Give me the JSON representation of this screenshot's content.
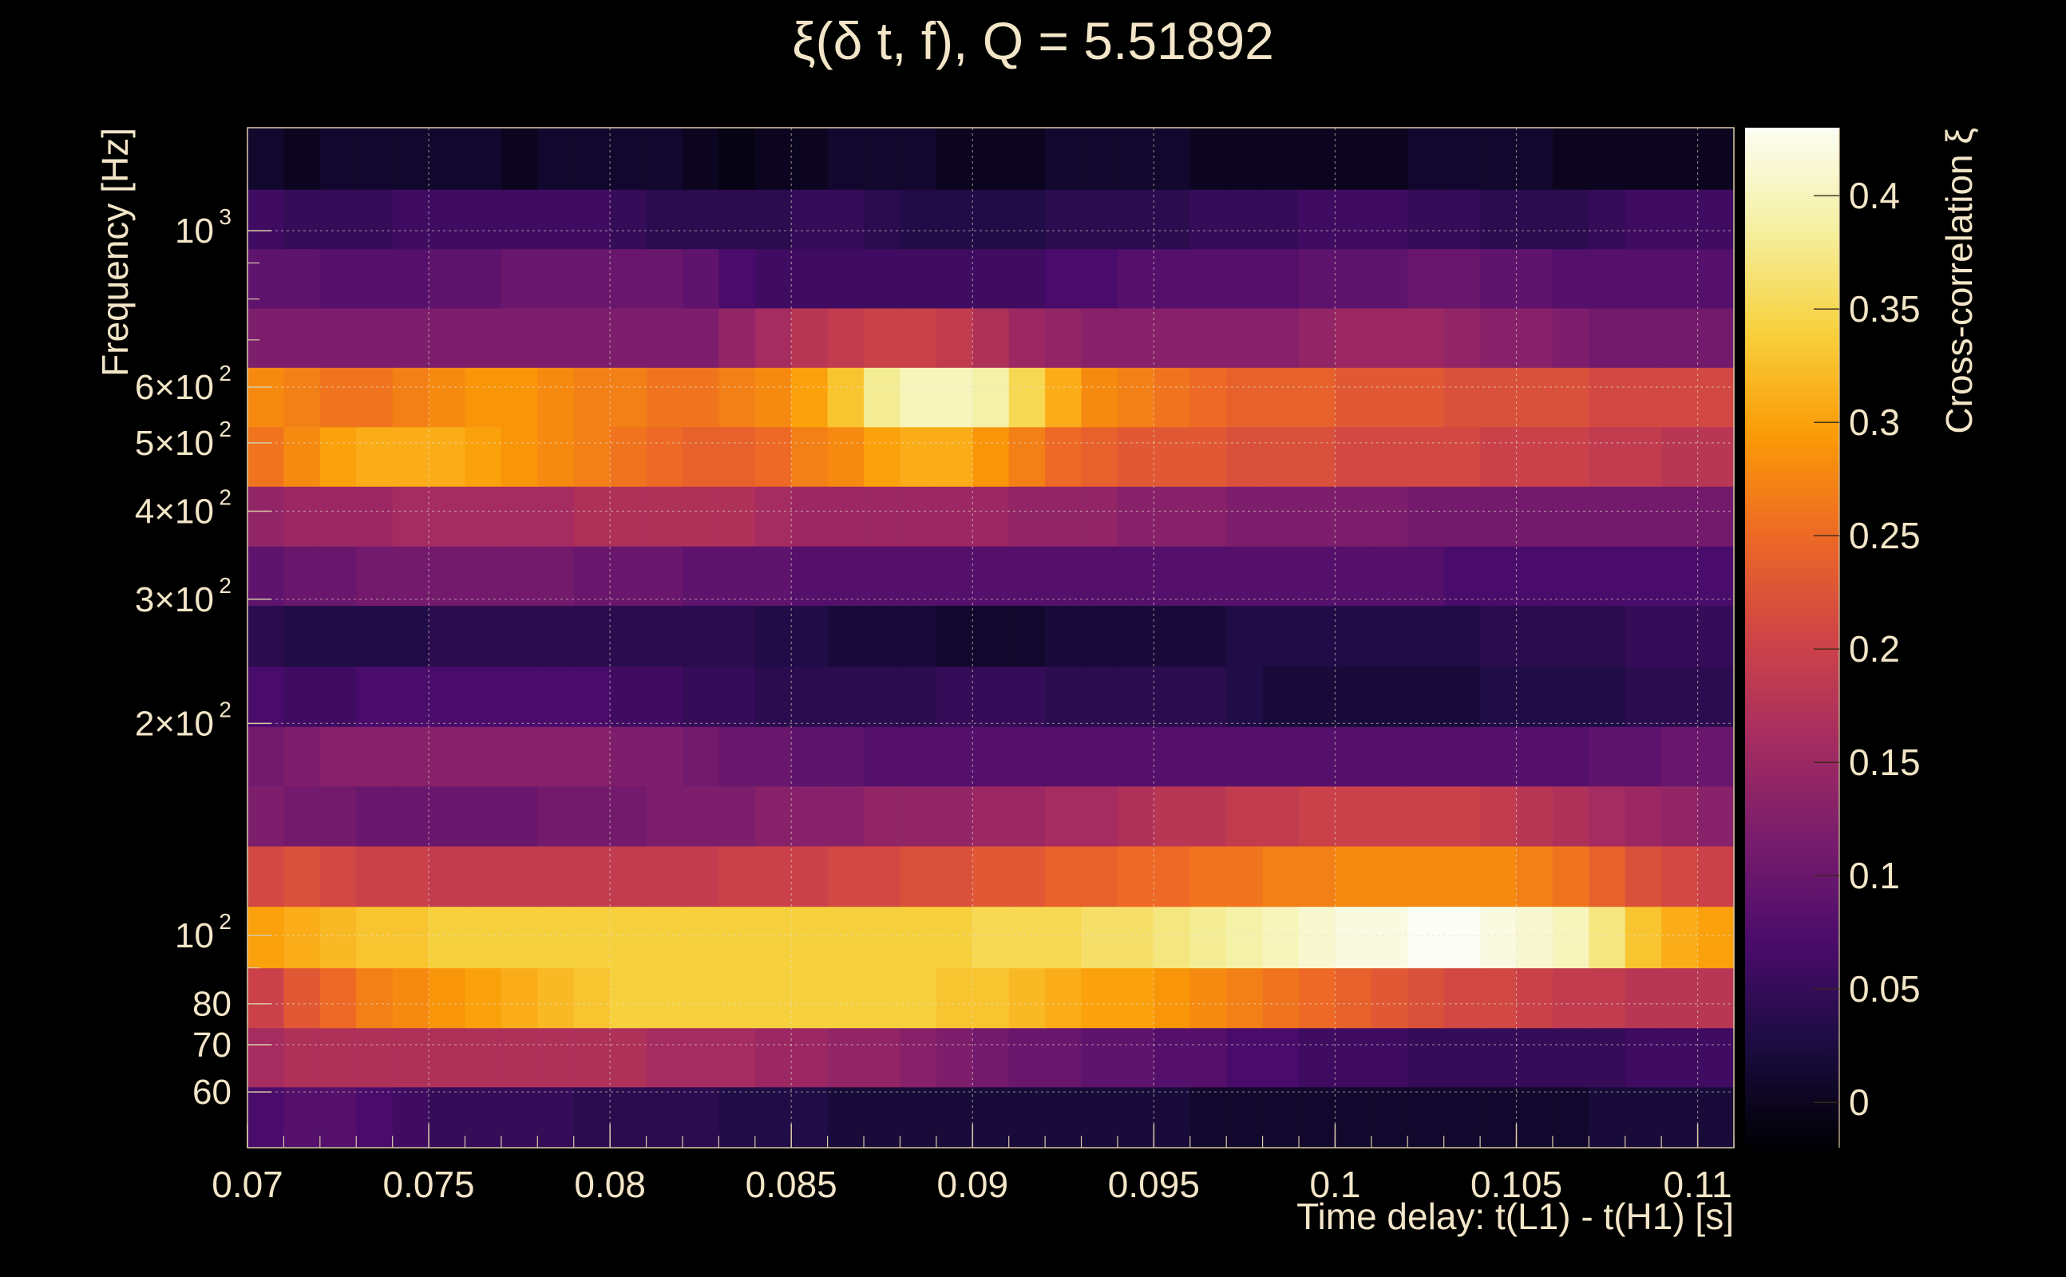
{
  "chart_data": {
    "type": "heatmap",
    "title": "ξ(δ t, f), Q = 5.51892",
    "xlabel": "Time delay: t(L1) - t(H1) [s]",
    "ylabel": "Frequency [Hz]",
    "colorbar_label": "Cross-correlation ξ",
    "x_ticks": [
      {
        "value": 0.07,
        "label": "0.07"
      },
      {
        "value": 0.075,
        "label": "0.075"
      },
      {
        "value": 0.08,
        "label": "0.08"
      },
      {
        "value": 0.085,
        "label": "0.085"
      },
      {
        "value": 0.09,
        "label": "0.09"
      },
      {
        "value": 0.095,
        "label": "0.095"
      },
      {
        "value": 0.1,
        "label": "0.1"
      },
      {
        "value": 0.105,
        "label": "0.105"
      },
      {
        "value": 0.11,
        "label": "0.11"
      }
    ],
    "y_ticks": [
      {
        "value": 60,
        "base": "60",
        "exp": ""
      },
      {
        "value": 70,
        "base": "70",
        "exp": ""
      },
      {
        "value": 80,
        "base": "80",
        "exp": ""
      },
      {
        "value": 100,
        "base": "10",
        "exp": "2"
      },
      {
        "value": 200,
        "base": "2×10",
        "exp": "2"
      },
      {
        "value": 300,
        "base": "3×10",
        "exp": "2"
      },
      {
        "value": 400,
        "base": "4×10",
        "exp": "2"
      },
      {
        "value": 500,
        "base": "5×10",
        "exp": "2"
      },
      {
        "value": 600,
        "base": "6×10",
        "exp": "2"
      },
      {
        "value": 1000,
        "base": "10",
        "exp": "3"
      }
    ],
    "color_ticks": [
      {
        "value": 0,
        "label": "0"
      },
      {
        "value": 0.05,
        "label": "0.05"
      },
      {
        "value": 0.1,
        "label": "0.1"
      },
      {
        "value": 0.15,
        "label": "0.15"
      },
      {
        "value": 0.2,
        "label": "0.2"
      },
      {
        "value": 0.25,
        "label": "0.25"
      },
      {
        "value": 0.3,
        "label": "0.3"
      },
      {
        "value": 0.35,
        "label": "0.35"
      },
      {
        "value": 0.4,
        "label": "0.4"
      }
    ],
    "xlim": [
      0.07,
      0.111
    ],
    "ylim": [
      50,
      1400
    ],
    "y_scale": "log",
    "zlim": [
      -0.02,
      0.43
    ],
    "grid": true,
    "colormap": "inferno",
    "time_bins": 41,
    "freq_bands": [
      {
        "f_low": 50,
        "f_high": 61,
        "values": [
          0.07,
          0.08,
          0.08,
          0.07,
          0.06,
          0.05,
          0.05,
          0.05,
          0.05,
          0.04,
          0.04,
          0.04,
          0.04,
          0.03,
          0.03,
          0.03,
          0.02,
          0.02,
          0.02,
          0.02,
          0.02,
          0.02,
          0.02,
          0.02,
          0.02,
          0.02,
          0.01,
          0.01,
          0.01,
          0.01,
          0.01,
          0.01,
          0.01,
          0.01,
          0.01,
          0.01,
          0.01,
          0.02,
          0.02,
          0.02,
          0.02
        ]
      },
      {
        "f_low": 61,
        "f_high": 74,
        "values": [
          0.16,
          0.17,
          0.17,
          0.17,
          0.17,
          0.17,
          0.17,
          0.17,
          0.17,
          0.17,
          0.17,
          0.16,
          0.16,
          0.16,
          0.15,
          0.15,
          0.14,
          0.14,
          0.13,
          0.12,
          0.11,
          0.1,
          0.1,
          0.09,
          0.09,
          0.08,
          0.08,
          0.07,
          0.07,
          0.06,
          0.06,
          0.06,
          0.05,
          0.05,
          0.05,
          0.05,
          0.05,
          0.05,
          0.06,
          0.06,
          0.06
        ]
      },
      {
        "f_low": 74,
        "f_high": 90,
        "values": [
          0.2,
          0.23,
          0.25,
          0.27,
          0.28,
          0.29,
          0.3,
          0.31,
          0.32,
          0.33,
          0.34,
          0.34,
          0.34,
          0.34,
          0.34,
          0.34,
          0.34,
          0.34,
          0.34,
          0.33,
          0.33,
          0.32,
          0.31,
          0.3,
          0.3,
          0.29,
          0.28,
          0.27,
          0.26,
          0.25,
          0.24,
          0.23,
          0.22,
          0.21,
          0.21,
          0.2,
          0.19,
          0.19,
          0.18,
          0.18,
          0.18
        ]
      },
      {
        "f_low": 90,
        "f_high": 110,
        "values": [
          0.3,
          0.31,
          0.32,
          0.33,
          0.33,
          0.34,
          0.34,
          0.34,
          0.34,
          0.34,
          0.34,
          0.34,
          0.34,
          0.34,
          0.34,
          0.34,
          0.34,
          0.34,
          0.34,
          0.34,
          0.35,
          0.35,
          0.35,
          0.36,
          0.36,
          0.37,
          0.38,
          0.39,
          0.4,
          0.41,
          0.42,
          0.42,
          0.43,
          0.43,
          0.42,
          0.41,
          0.4,
          0.37,
          0.33,
          0.31,
          0.3
        ]
      },
      {
        "f_low": 110,
        "f_high": 134,
        "values": [
          0.21,
          0.22,
          0.21,
          0.2,
          0.2,
          0.19,
          0.19,
          0.19,
          0.19,
          0.19,
          0.19,
          0.19,
          0.19,
          0.2,
          0.2,
          0.2,
          0.21,
          0.21,
          0.22,
          0.22,
          0.23,
          0.23,
          0.24,
          0.24,
          0.25,
          0.25,
          0.26,
          0.26,
          0.27,
          0.27,
          0.28,
          0.28,
          0.28,
          0.28,
          0.28,
          0.27,
          0.26,
          0.24,
          0.22,
          0.21,
          0.2
        ]
      },
      {
        "f_low": 134,
        "f_high": 163,
        "values": [
          0.12,
          0.11,
          0.11,
          0.1,
          0.1,
          0.1,
          0.1,
          0.1,
          0.11,
          0.11,
          0.11,
          0.12,
          0.12,
          0.12,
          0.13,
          0.13,
          0.13,
          0.14,
          0.14,
          0.14,
          0.15,
          0.15,
          0.16,
          0.16,
          0.17,
          0.18,
          0.18,
          0.19,
          0.19,
          0.2,
          0.2,
          0.2,
          0.2,
          0.2,
          0.19,
          0.18,
          0.17,
          0.16,
          0.15,
          0.14,
          0.13
        ]
      },
      {
        "f_low": 163,
        "f_high": 198,
        "values": [
          0.11,
          0.12,
          0.13,
          0.13,
          0.13,
          0.13,
          0.13,
          0.13,
          0.13,
          0.13,
          0.12,
          0.12,
          0.11,
          0.1,
          0.1,
          0.09,
          0.09,
          0.08,
          0.08,
          0.08,
          0.08,
          0.08,
          0.08,
          0.08,
          0.08,
          0.08,
          0.08,
          0.08,
          0.08,
          0.08,
          0.08,
          0.08,
          0.08,
          0.08,
          0.08,
          0.08,
          0.08,
          0.09,
          0.09,
          0.1,
          0.1
        ]
      },
      {
        "f_low": 198,
        "f_high": 241,
        "values": [
          0.07,
          0.06,
          0.06,
          0.07,
          0.07,
          0.07,
          0.07,
          0.07,
          0.07,
          0.07,
          0.06,
          0.06,
          0.05,
          0.05,
          0.04,
          0.04,
          0.04,
          0.04,
          0.04,
          0.05,
          0.05,
          0.05,
          0.04,
          0.04,
          0.04,
          0.04,
          0.04,
          0.03,
          0.02,
          0.02,
          0.02,
          0.02,
          0.02,
          0.02,
          0.03,
          0.03,
          0.03,
          0.03,
          0.04,
          0.04,
          0.04
        ]
      },
      {
        "f_low": 241,
        "f_high": 294,
        "values": [
          0.04,
          0.03,
          0.03,
          0.03,
          0.03,
          0.04,
          0.04,
          0.04,
          0.04,
          0.04,
          0.04,
          0.04,
          0.04,
          0.04,
          0.03,
          0.03,
          0.02,
          0.02,
          0.02,
          0.01,
          0.01,
          0.01,
          0.02,
          0.02,
          0.02,
          0.02,
          0.02,
          0.03,
          0.03,
          0.03,
          0.03,
          0.03,
          0.03,
          0.03,
          0.04,
          0.04,
          0.04,
          0.04,
          0.05,
          0.05,
          0.05
        ]
      },
      {
        "f_low": 294,
        "f_high": 357,
        "values": [
          0.09,
          0.1,
          0.1,
          0.11,
          0.11,
          0.11,
          0.11,
          0.11,
          0.11,
          0.1,
          0.1,
          0.1,
          0.09,
          0.09,
          0.09,
          0.08,
          0.08,
          0.08,
          0.08,
          0.08,
          0.08,
          0.08,
          0.08,
          0.08,
          0.08,
          0.08,
          0.08,
          0.08,
          0.08,
          0.08,
          0.08,
          0.08,
          0.08,
          0.07,
          0.07,
          0.07,
          0.07,
          0.07,
          0.07,
          0.07,
          0.07
        ]
      },
      {
        "f_low": 357,
        "f_high": 434,
        "values": [
          0.14,
          0.15,
          0.15,
          0.15,
          0.16,
          0.16,
          0.16,
          0.16,
          0.16,
          0.17,
          0.17,
          0.17,
          0.17,
          0.17,
          0.16,
          0.15,
          0.15,
          0.15,
          0.15,
          0.15,
          0.15,
          0.14,
          0.14,
          0.14,
          0.13,
          0.13,
          0.13,
          0.12,
          0.12,
          0.12,
          0.12,
          0.12,
          0.11,
          0.11,
          0.11,
          0.11,
          0.11,
          0.11,
          0.11,
          0.11,
          0.11
        ]
      },
      {
        "f_low": 434,
        "f_high": 527,
        "values": [
          0.26,
          0.28,
          0.3,
          0.31,
          0.31,
          0.31,
          0.3,
          0.29,
          0.28,
          0.27,
          0.26,
          0.25,
          0.24,
          0.24,
          0.25,
          0.27,
          0.28,
          0.3,
          0.31,
          0.31,
          0.29,
          0.27,
          0.25,
          0.24,
          0.23,
          0.23,
          0.23,
          0.22,
          0.22,
          0.22,
          0.21,
          0.21,
          0.21,
          0.21,
          0.2,
          0.2,
          0.2,
          0.19,
          0.19,
          0.18,
          0.18
        ]
      },
      {
        "f_low": 527,
        "f_high": 640,
        "values": [
          0.28,
          0.27,
          0.26,
          0.26,
          0.27,
          0.28,
          0.29,
          0.29,
          0.28,
          0.27,
          0.27,
          0.26,
          0.26,
          0.27,
          0.28,
          0.3,
          0.33,
          0.38,
          0.4,
          0.4,
          0.39,
          0.35,
          0.31,
          0.28,
          0.27,
          0.26,
          0.25,
          0.24,
          0.24,
          0.24,
          0.23,
          0.23,
          0.23,
          0.22,
          0.22,
          0.22,
          0.22,
          0.21,
          0.21,
          0.21,
          0.21
        ]
      },
      {
        "f_low": 640,
        "f_high": 777,
        "values": [
          0.12,
          0.12,
          0.12,
          0.12,
          0.12,
          0.12,
          0.12,
          0.12,
          0.12,
          0.12,
          0.12,
          0.12,
          0.12,
          0.14,
          0.16,
          0.18,
          0.19,
          0.2,
          0.2,
          0.19,
          0.17,
          0.15,
          0.14,
          0.13,
          0.13,
          0.13,
          0.13,
          0.13,
          0.13,
          0.14,
          0.15,
          0.15,
          0.15,
          0.14,
          0.13,
          0.13,
          0.12,
          0.11,
          0.11,
          0.11,
          0.11
        ]
      },
      {
        "f_low": 777,
        "f_high": 943,
        "values": [
          0.09,
          0.09,
          0.08,
          0.08,
          0.08,
          0.09,
          0.09,
          0.1,
          0.1,
          0.1,
          0.1,
          0.1,
          0.09,
          0.07,
          0.06,
          0.06,
          0.06,
          0.06,
          0.06,
          0.06,
          0.06,
          0.06,
          0.07,
          0.07,
          0.08,
          0.08,
          0.08,
          0.08,
          0.08,
          0.09,
          0.09,
          0.09,
          0.1,
          0.1,
          0.09,
          0.09,
          0.08,
          0.08,
          0.08,
          0.08,
          0.08
        ]
      },
      {
        "f_low": 943,
        "f_high": 1145,
        "values": [
          0.06,
          0.05,
          0.05,
          0.05,
          0.06,
          0.06,
          0.06,
          0.06,
          0.06,
          0.06,
          0.05,
          0.04,
          0.04,
          0.04,
          0.04,
          0.05,
          0.05,
          0.04,
          0.03,
          0.03,
          0.03,
          0.03,
          0.04,
          0.04,
          0.04,
          0.04,
          0.05,
          0.05,
          0.05,
          0.06,
          0.06,
          0.06,
          0.05,
          0.05,
          0.04,
          0.04,
          0.04,
          0.05,
          0.06,
          0.06,
          0.06
        ]
      },
      {
        "f_low": 1145,
        "f_high": 1400,
        "values": [
          0.01,
          0.0,
          0.01,
          0.01,
          0.01,
          0.01,
          0.01,
          0.0,
          0.01,
          0.01,
          0.01,
          0.01,
          0.0,
          -0.01,
          0.0,
          0.0,
          0.01,
          0.01,
          0.01,
          0.0,
          0.0,
          0.0,
          0.01,
          0.01,
          0.01,
          0.01,
          0.0,
          0.0,
          0.0,
          0.0,
          0.0,
          0.0,
          0.01,
          0.01,
          0.01,
          0.01,
          0.0,
          0.0,
          0.0,
          0.0,
          0.0
        ]
      }
    ]
  }
}
